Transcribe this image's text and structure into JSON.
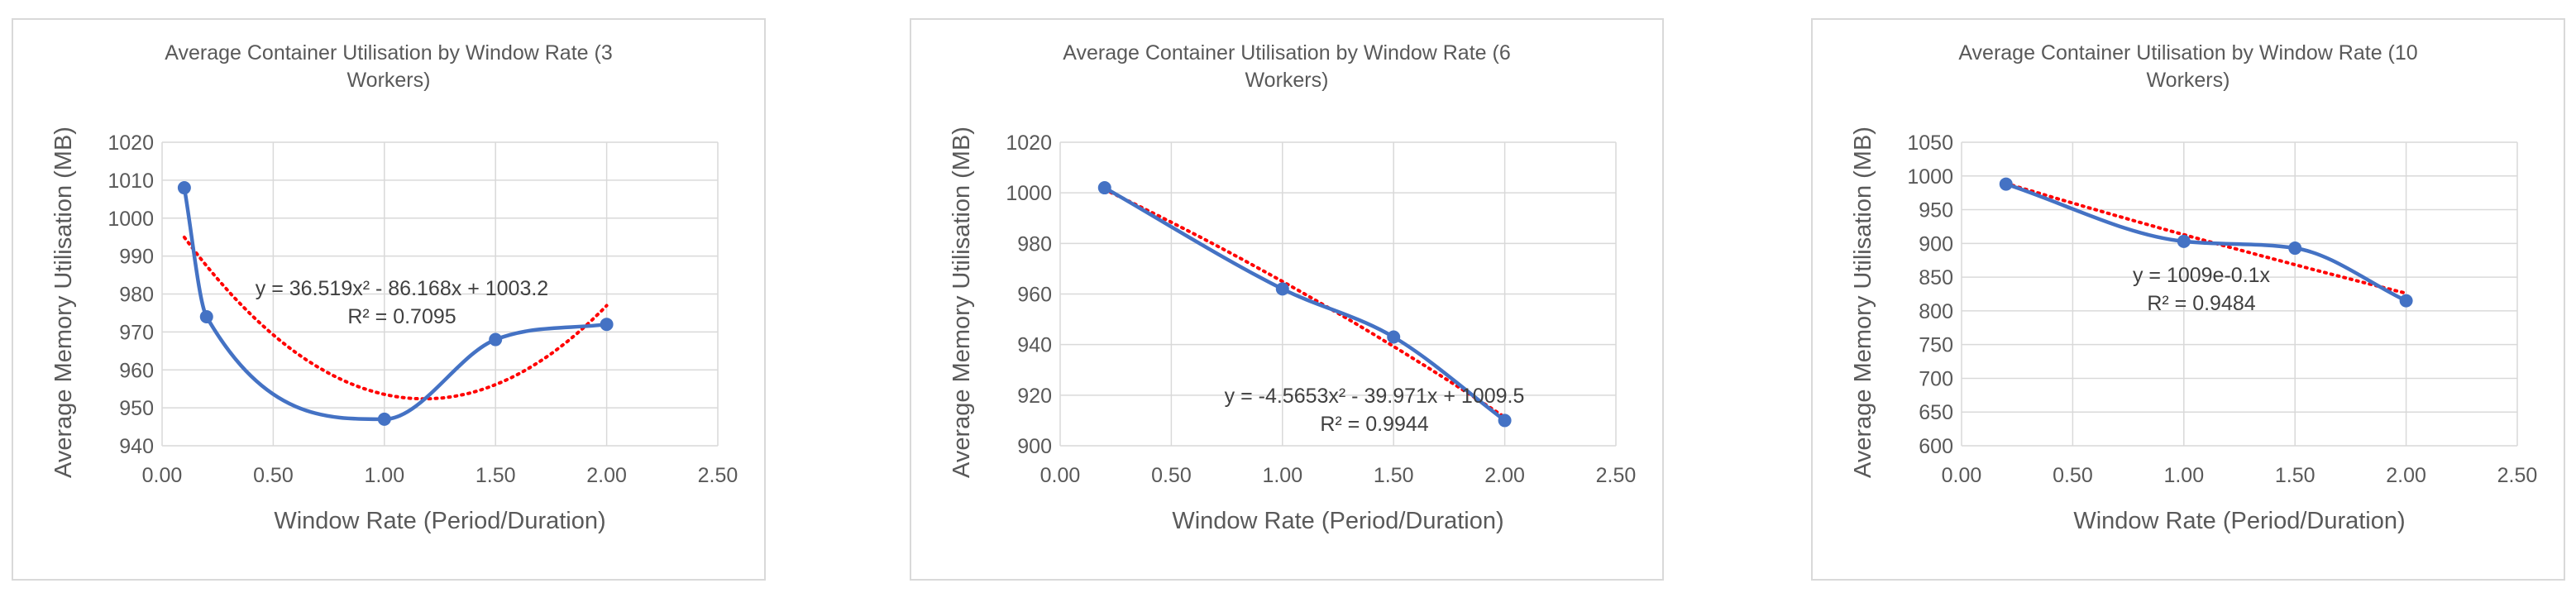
{
  "chart_data": [
    {
      "type": "scatter",
      "title_lines": [
        "Average Container Utilisation by Window Rate (3",
        "Workers)"
      ],
      "xlabel": "Window Rate (Period/Duration)",
      "ylabel": "Average Memory Utilisation (MB)",
      "xlim": [
        0,
        2.5
      ],
      "ylim": [
        940,
        1020
      ],
      "xticks": [
        0,
        0.5,
        1,
        1.5,
        2,
        2.5
      ],
      "xtick_labels": [
        "0.00",
        "0.50",
        "1.00",
        "1.50",
        "2.00",
        "2.50"
      ],
      "yticks": [
        940,
        950,
        960,
        970,
        980,
        990,
        1000,
        1010,
        1020
      ],
      "ytick_labels": [
        "940",
        "950",
        "960",
        "970",
        "980",
        "990",
        "1000",
        "1010",
        "1020"
      ],
      "grid": true,
      "series": [
        {
          "x": [
            0.1,
            0.2,
            1.0,
            1.5,
            2.0
          ],
          "y": [
            1008,
            974,
            947,
            968,
            972
          ],
          "color": "#4472c4"
        }
      ],
      "trendline": {
        "kind": "poly2",
        "coeffs": [
          36.519,
          -86.168,
          1003.2
        ],
        "x_range": [
          0.1,
          2.0
        ],
        "color": "#ff0000"
      },
      "equation_lines": [
        "y = 36.519x² - 86.168x + 1003.2",
        "R² = 0.7095"
      ]
    },
    {
      "type": "scatter",
      "title_lines": [
        "Average Container Utilisation by Window Rate (6",
        "Workers)"
      ],
      "xlabel": "Window Rate (Period/Duration)",
      "ylabel": "Average Memory Utilisation (MB)",
      "xlim": [
        0,
        2.5
      ],
      "ylim": [
        900,
        1020
      ],
      "xticks": [
        0,
        0.5,
        1,
        1.5,
        2,
        2.5
      ],
      "xtick_labels": [
        "0.00",
        "0.50",
        "1.00",
        "1.50",
        "2.00",
        "2.50"
      ],
      "yticks": [
        900,
        920,
        940,
        960,
        980,
        1000,
        1020
      ],
      "ytick_labels": [
        "900",
        "920",
        "940",
        "960",
        "980",
        "1000",
        "1020"
      ],
      "grid": true,
      "series": [
        {
          "x": [
            0.2,
            1.0,
            1.5,
            2.0
          ],
          "y": [
            1002,
            962,
            943,
            910
          ],
          "color": "#4472c4"
        }
      ],
      "trendline": {
        "kind": "poly2",
        "coeffs": [
          -4.5653,
          -39.971,
          1009.5
        ],
        "x_range": [
          0.2,
          2.0
        ],
        "color": "#ff0000"
      },
      "equation_lines": [
        "y = -4.5653x² - 39.971x + 1009.5",
        "R² = 0.9944"
      ]
    },
    {
      "type": "scatter",
      "title_lines": [
        "Average Container Utilisation by Window Rate (10",
        "Workers)"
      ],
      "xlabel": "Window Rate (Period/Duration)",
      "ylabel": "Average Memory Utilisation (MB)",
      "xlim": [
        0,
        2.5
      ],
      "ylim": [
        600,
        1050
      ],
      "xticks": [
        0,
        0.5,
        1,
        1.5,
        2,
        2.5
      ],
      "xtick_labels": [
        "0.00",
        "0.50",
        "1.00",
        "1.50",
        "2.00",
        "2.50"
      ],
      "yticks": [
        600,
        650,
        700,
        750,
        800,
        850,
        900,
        950,
        1000,
        1050
      ],
      "ytick_labels": [
        "600",
        "650",
        "700",
        "750",
        "800",
        "850",
        "900",
        "950",
        "1000",
        "1050"
      ],
      "grid": true,
      "series": [
        {
          "x": [
            0.2,
            1.0,
            1.5,
            2.0
          ],
          "y": [
            988,
            903,
            893,
            815
          ],
          "color": "#4472c4"
        }
      ],
      "trendline": {
        "kind": "exp",
        "coeffs": [
          1009,
          -0.1
        ],
        "x_range": [
          0.2,
          2.0
        ],
        "color": "#ff0000"
      },
      "equation_lines": [
        "y = 1009e-0.1x",
        "R² = 0.9484"
      ]
    }
  ]
}
